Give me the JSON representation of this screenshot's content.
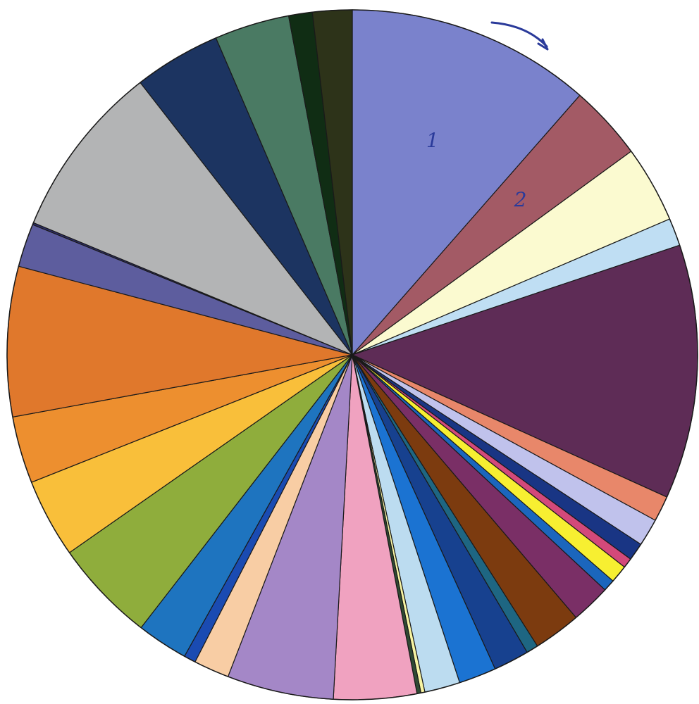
{
  "chart_data": {
    "type": "pie",
    "start_angle_deg": 0,
    "direction": "clockwise",
    "legend": "none",
    "slices": [
      {
        "value": 12.4,
        "color": "#7a82cc",
        "label": "1"
      },
      {
        "value": 3.8,
        "color": "#a35a65",
        "label": "2"
      },
      {
        "value": 3.9,
        "color": "#fbfad0"
      },
      {
        "value": 1.4,
        "color": "#bfdef3"
      },
      {
        "value": 12.9,
        "color": "#5e2c56"
      },
      {
        "value": 1.3,
        "color": "#e8876a"
      },
      {
        "value": 1.4,
        "color": "#c0c2ec"
      },
      {
        "value": 0.9,
        "color": "#193584"
      },
      {
        "value": 0.5,
        "color": "#d3497a"
      },
      {
        "value": 0.9,
        "color": "#f7ef31"
      },
      {
        "value": 0.6,
        "color": "#1b66bd"
      },
      {
        "value": 2.0,
        "color": "#7a2f66"
      },
      {
        "value": 2.4,
        "color": "#7c3b0f"
      },
      {
        "value": 0.6,
        "color": "#1e6682"
      },
      {
        "value": 1.8,
        "color": "#17418f"
      },
      {
        "value": 1.9,
        "color": "#1b73d2"
      },
      {
        "value": 1.8,
        "color": "#bcdcf0"
      },
      {
        "value": 0.2,
        "color": "#f7f4a2"
      },
      {
        "value": 0.2,
        "color": "#2f4a34"
      },
      {
        "value": 4.2,
        "color": "#f0a2c0"
      },
      {
        "value": 5.4,
        "color": "#a487c7"
      },
      {
        "value": 1.8,
        "color": "#f8cda4"
      },
      {
        "value": 0.6,
        "color": "#1a4bb2"
      },
      {
        "value": 2.6,
        "color": "#1e74bf"
      },
      {
        "value": 5.2,
        "color": "#8fad3c"
      },
      {
        "value": 4.0,
        "color": "#f9bf3a"
      },
      {
        "value": 3.4,
        "color": "#ed8f2f"
      },
      {
        "value": 7.6,
        "color": "#e0782c"
      },
      {
        "value": 2.2,
        "color": "#5d5d9e"
      },
      {
        "value": 0.1,
        "color": "#2e2e6e"
      },
      {
        "value": 8.9,
        "color": "#b3b4b5"
      },
      {
        "value": 4.4,
        "color": "#1c3461"
      },
      {
        "value": 3.8,
        "color": "#4a7a63"
      },
      {
        "value": 1.2,
        "color": "#102d14"
      },
      {
        "value": 2.0,
        "color": "#2d3319"
      }
    ]
  },
  "annotation": {
    "arrow_color": "#2a3a9a",
    "arrow_meaning": "clockwise-direction-arrow"
  }
}
